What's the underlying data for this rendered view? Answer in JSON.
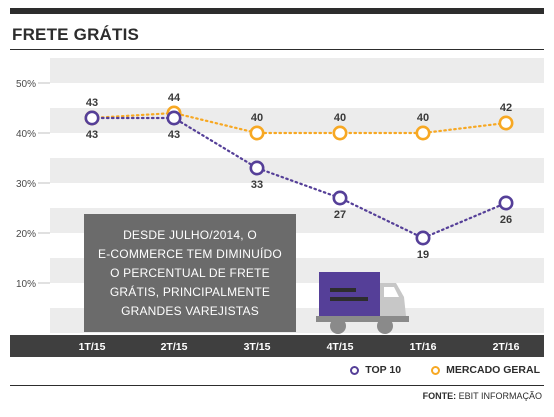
{
  "header": {
    "title": "FRETE GRÁTIS"
  },
  "source": {
    "label": "FONTE:",
    "text": "EBIT INFORMAÇÃO"
  },
  "callout": {
    "text": "DESDE JULHO/2014, O E-COMMERCE TEM DIMINUÍDO O PERCENTUAL DE FRETE GRÁTIS, PRINCIPALMENTE GRANDES VAREJISTAS",
    "lines": [
      "DESDE JULHO/2014, O",
      "E-COMMERCE TEM DIMINUÍDO",
      "O PERCENTUAL DE FRETE",
      "GRÁTIS, PRINCIPALMENTE",
      "GRANDES VAREJISTAS"
    ]
  },
  "colors": {
    "top10": "#553f98",
    "mercado": "#f7a823",
    "axis_bar": "#3f3f3f",
    "band_light": "#ececec",
    "band_white": "#ffffff",
    "truck_cargo": "#553f98",
    "truck_cab": "#c7c7c7",
    "truck_wheels": "#8a8a8a"
  },
  "icons": [
    "truck-icon"
  ],
  "chart_data": {
    "type": "line",
    "title": "FRETE GRÁTIS",
    "categories": [
      "1T/15",
      "2T/15",
      "3T/15",
      "4T/15",
      "1T/16",
      "2T/16"
    ],
    "series": [
      {
        "name": "TOP 10",
        "values": [
          43,
          43,
          33,
          27,
          19,
          26
        ],
        "color": "#553f98",
        "line_style": "dotted"
      },
      {
        "name": "MERCADO GERAL",
        "values": [
          43,
          44,
          40,
          40,
          40,
          42
        ],
        "color": "#f7a823",
        "line_style": "dotted"
      }
    ],
    "yticks": [
      "10%",
      "20%",
      "30%",
      "40%",
      "50%"
    ],
    "ytick_values": [
      10,
      20,
      30,
      40,
      50
    ],
    "ylim": [
      0,
      55
    ],
    "xlabel": "",
    "ylabel": "",
    "grid": "alternating horizontal bands",
    "legend": "bottom-right",
    "data_labels": true
  }
}
